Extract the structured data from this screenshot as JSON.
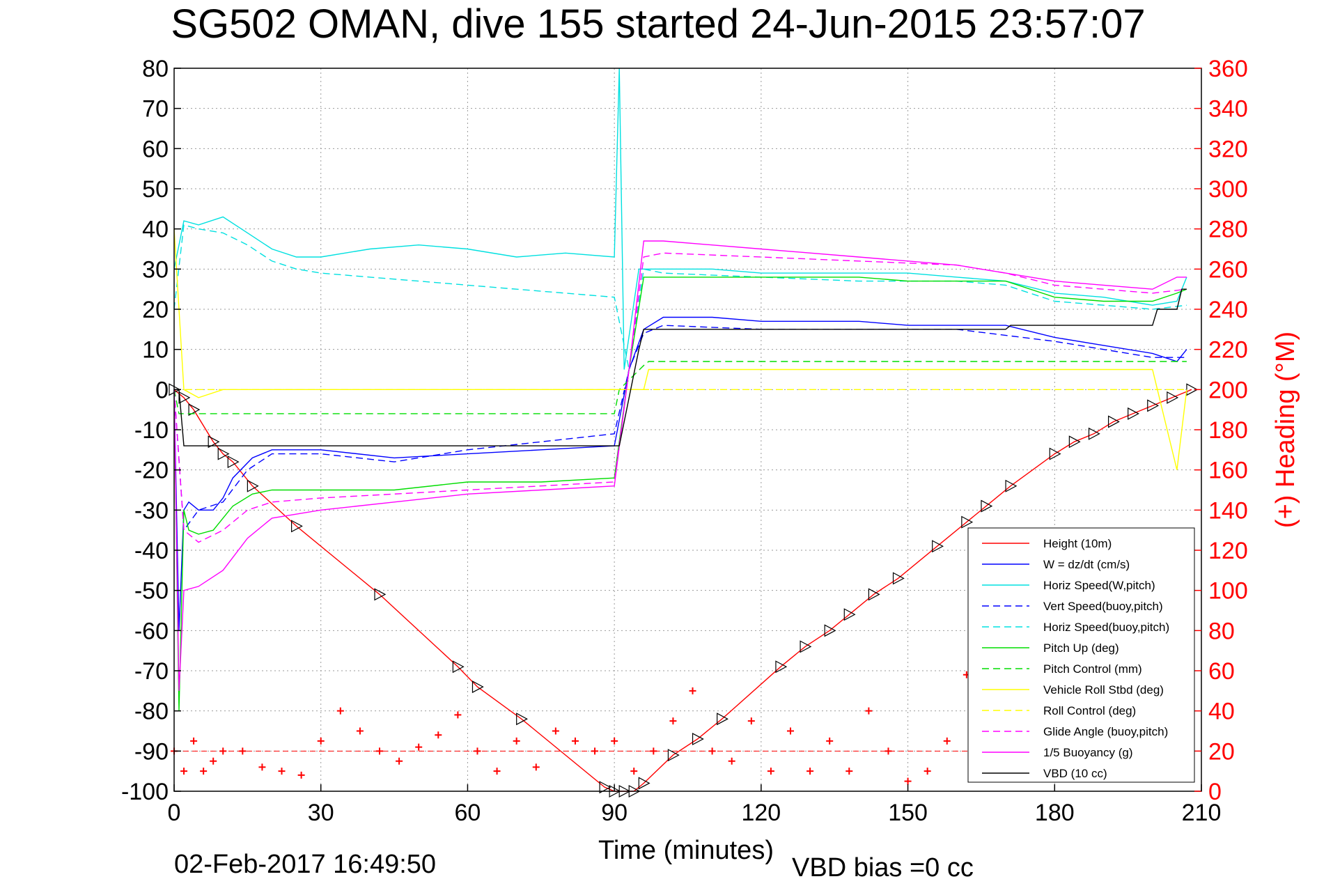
{
  "chart_data": {
    "type": "line",
    "title": "SG502 OMAN, dive 155 started 24-Jun-2015 23:57:07",
    "xlabel": "Time (minutes)",
    "ylabel": "",
    "y2label": "(+) Heading (°M)",
    "xlim": [
      0,
      210
    ],
    "ylim": [
      -100,
      80
    ],
    "y2lim": [
      0,
      360
    ],
    "x_ticks": [
      0,
      30,
      60,
      90,
      120,
      150,
      180,
      210
    ],
    "y_ticks": [
      80,
      70,
      60,
      50,
      40,
      30,
      20,
      10,
      0,
      -10,
      -20,
      -30,
      -40,
      -50,
      -60,
      -70,
      -80,
      -90,
      -100
    ],
    "y2_ticks": [
      360,
      340,
      320,
      300,
      280,
      260,
      240,
      220,
      200,
      180,
      160,
      140,
      120,
      100,
      80,
      60,
      40,
      20,
      0
    ],
    "grid": true,
    "legend_position": "bottom-right",
    "footer_left": "02-Feb-2017 16:49:50",
    "footer_right": "VBD bias =0 cc",
    "colors": {
      "height": "#ff0000",
      "w": "#0000ff",
      "horiz": "#00e0e0",
      "pitch": "#00dd00",
      "roll": "#ffff00",
      "glide": "#ff00ff",
      "vbd": "#000000",
      "heading": "#ff0000"
    },
    "series": [
      {
        "name": "Height (10m)",
        "color": "#ff0000",
        "dash": "solid",
        "marker": "triangle",
        "x": [
          0,
          2,
          4,
          8,
          10,
          12,
          16,
          25,
          42,
          58,
          62,
          71,
          88,
          90,
          92,
          94,
          96,
          102,
          107,
          112,
          124,
          129,
          134,
          138,
          143,
          148,
          156,
          162,
          166,
          171,
          180,
          184,
          188,
          192,
          196,
          200,
          204,
          208
        ],
        "y": [
          0,
          -2,
          -5,
          -13,
          -16,
          -18,
          -24,
          -34,
          -51,
          -69,
          -74,
          -82,
          -99,
          -100,
          -100,
          -100,
          -98,
          -91,
          -87,
          -82,
          -69,
          -64,
          -60,
          -56,
          -51,
          -47,
          -39,
          -33,
          -29,
          -24,
          -16,
          -13,
          -11,
          -8,
          -6,
          -4,
          -2,
          0
        ]
      },
      {
        "name": "W = dz/dt (cm/s)",
        "color": "#0000ff",
        "dash": "solid",
        "x": [
          0,
          1,
          2,
          3,
          5,
          8,
          10,
          12,
          16,
          20,
          30,
          45,
          60,
          75,
          90,
          93,
          96,
          100,
          110,
          120,
          130,
          140,
          150,
          160,
          170,
          180,
          190,
          200,
          205,
          207
        ],
        "y": [
          0,
          -60,
          -30,
          -28,
          -30,
          -30,
          -27,
          -22,
          -17,
          -15,
          -15,
          -17,
          -16,
          -15,
          -14,
          5,
          15,
          18,
          18,
          17,
          17,
          17,
          16,
          16,
          16,
          13,
          11,
          9,
          7,
          10
        ]
      },
      {
        "name": "Horiz Speed(W,pitch)",
        "color": "#00e0e0",
        "dash": "solid",
        "x": [
          0,
          2,
          5,
          10,
          15,
          20,
          25,
          30,
          40,
          50,
          60,
          70,
          80,
          90,
          91,
          92,
          95,
          100,
          110,
          120,
          130,
          140,
          150,
          160,
          170,
          180,
          190,
          200,
          205,
          207
        ],
        "y": [
          30,
          42,
          41,
          43,
          39,
          35,
          33,
          33,
          35,
          36,
          35,
          33,
          34,
          33,
          80,
          5,
          30,
          30,
          30,
          29,
          29,
          29,
          29,
          28,
          27,
          24,
          23,
          21,
          22,
          28
        ]
      },
      {
        "name": "Vert Speed(buoy,pitch)",
        "color": "#0000ff",
        "dash": "dashed",
        "x": [
          0,
          2,
          5,
          10,
          15,
          20,
          30,
          45,
          60,
          75,
          90,
          93,
          96,
          100,
          120,
          140,
          160,
          180,
          200,
          207
        ],
        "y": [
          0,
          -35,
          -30,
          -28,
          -20,
          -16,
          -16,
          -18,
          -15,
          -13,
          -11,
          5,
          14,
          16,
          15,
          15,
          15,
          12,
          8,
          8
        ]
      },
      {
        "name": "Horiz Speed(buoy,pitch)",
        "color": "#00e0e0",
        "dash": "dashed",
        "x": [
          0,
          2,
          5,
          10,
          15,
          20,
          25,
          30,
          40,
          50,
          60,
          70,
          80,
          90,
          93,
          96,
          100,
          120,
          140,
          160,
          170,
          180,
          190,
          200,
          207
        ],
        "y": [
          20,
          41,
          40,
          39,
          36,
          32,
          30,
          29,
          28,
          27,
          26,
          25,
          24,
          23,
          5,
          30,
          29,
          28,
          27,
          27,
          26,
          22,
          21,
          20,
          21
        ]
      },
      {
        "name": "Pitch Up (deg)",
        "color": "#00dd00",
        "dash": "solid",
        "x": [
          0,
          1,
          2,
          3,
          5,
          8,
          10,
          12,
          16,
          20,
          30,
          45,
          60,
          75,
          90,
          93,
          96,
          100,
          110,
          120,
          130,
          140,
          150,
          160,
          170,
          180,
          190,
          200,
          205,
          207
        ],
        "y": [
          0,
          -80,
          -30,
          -35,
          -36,
          -35,
          -32,
          -29,
          -26,
          -25,
          -25,
          -25,
          -23,
          -23,
          -22,
          5,
          28,
          28,
          28,
          28,
          28,
          28,
          27,
          27,
          27,
          23,
          22,
          22,
          24,
          25
        ]
      },
      {
        "name": "Pitch Control (mm)",
        "color": "#00dd00",
        "dash": "dashed",
        "x": [
          0,
          1,
          2,
          90,
          91,
          96,
          97,
          207
        ],
        "y": [
          0,
          -6,
          -6,
          -6,
          0,
          6,
          7,
          7
        ]
      },
      {
        "name": "Vehicle Roll Stbd (deg)",
        "color": "#ffff00",
        "dash": "solid",
        "x": [
          0,
          2,
          5,
          10,
          20,
          30,
          40,
          50,
          60,
          70,
          80,
          90,
          91,
          96,
          97,
          100,
          120,
          140,
          160,
          180,
          200,
          205,
          207
        ],
        "y": [
          40,
          0,
          -2,
          0,
          0,
          0,
          0,
          0,
          0,
          0,
          0,
          0,
          0,
          0,
          5,
          5,
          5,
          5,
          5,
          5,
          5,
          -20,
          0
        ]
      },
      {
        "name": "Roll Control (deg)",
        "color": "#ffff00",
        "dash": "dashed",
        "x": [
          0,
          2,
          50,
          90,
          91,
          96,
          97,
          150,
          207
        ],
        "y": [
          0,
          0,
          0,
          0,
          0,
          0,
          0,
          0,
          0
        ]
      },
      {
        "name": "Glide Angle (buoy,pitch)",
        "color": "#ff00ff",
        "dash": "dashed",
        "x": [
          0,
          2,
          5,
          10,
          15,
          20,
          30,
          45,
          60,
          75,
          90,
          93,
          96,
          100,
          120,
          140,
          160,
          170,
          180,
          190,
          200,
          207
        ],
        "y": [
          0,
          -35,
          -38,
          -35,
          -30,
          -28,
          -27,
          -26,
          -25,
          -24,
          -23,
          5,
          33,
          34,
          33,
          32,
          31,
          29,
          26,
          25,
          24,
          25
        ]
      },
      {
        "name": "1/5 Buoyancy (g)",
        "color": "#ff00ff",
        "dash": "solid",
        "x": [
          0,
          1,
          2,
          5,
          10,
          15,
          20,
          30,
          45,
          60,
          75,
          90,
          93,
          96,
          100,
          120,
          140,
          160,
          170,
          180,
          190,
          200,
          205,
          207
        ],
        "y": [
          0,
          -75,
          -50,
          -49,
          -45,
          -37,
          -32,
          -30,
          -28,
          -26,
          -25,
          -24,
          5,
          37,
          37,
          35,
          33,
          31,
          29,
          27,
          26,
          25,
          28,
          28
        ]
      },
      {
        "name": "VBD (10 cc)",
        "color": "#000000",
        "dash": "solid",
        "x": [
          0,
          1,
          2,
          90,
          91,
          95,
          96,
          100,
          150,
          170,
          171,
          200,
          201,
          205,
          206,
          207
        ],
        "y": [
          0,
          0,
          -14,
          -14,
          -14,
          10,
          15,
          15,
          15,
          15,
          16,
          16,
          20,
          20,
          25,
          25
        ]
      },
      {
        "name": "Heading",
        "color": "#ff0000",
        "marker": "plus",
        "axis": "y2",
        "x": [
          0,
          2,
          4,
          6,
          8,
          10,
          14,
          18,
          22,
          26,
          30,
          34,
          38,
          42,
          46,
          50,
          54,
          58,
          62,
          66,
          70,
          74,
          78,
          82,
          86,
          90,
          94,
          98,
          102,
          106,
          110,
          114,
          118,
          122,
          126,
          130,
          134,
          138,
          142,
          146,
          150,
          154,
          158,
          162,
          166,
          170,
          174,
          178,
          182,
          186,
          190,
          194,
          198,
          202,
          206
        ],
        "y": [
          20,
          10,
          25,
          10,
          15,
          20,
          20,
          12,
          10,
          8,
          25,
          40,
          30,
          20,
          15,
          22,
          28,
          38,
          20,
          10,
          25,
          12,
          30,
          25,
          20,
          25,
          10,
          20,
          35,
          50,
          20,
          15,
          35,
          10,
          30,
          10,
          25,
          10,
          40,
          20,
          5,
          10,
          25,
          58,
          40,
          55,
          30,
          50,
          35,
          40,
          30,
          35,
          40,
          30,
          40
        ]
      }
    ]
  }
}
